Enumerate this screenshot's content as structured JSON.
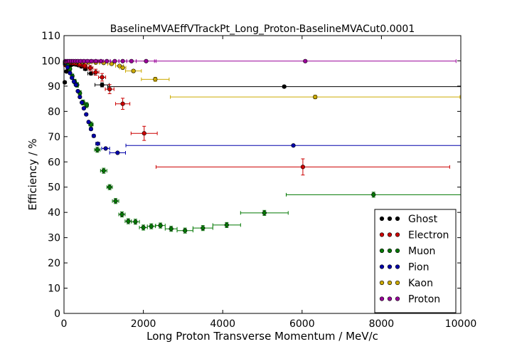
{
  "chart_data": {
    "type": "scatter",
    "title": "BaselineMVAEffVTrackPt_Long_Proton-BaselineMVACut0.0001",
    "xlabel": "Long Proton Transverse Momentum / MeV/c",
    "ylabel": "Efficiency / %",
    "xlim": [
      0,
      10000
    ],
    "ylim": [
      0,
      110
    ],
    "xticks": [
      0,
      2000,
      4000,
      6000,
      8000,
      10000
    ],
    "yticks": [
      0,
      10,
      20,
      30,
      40,
      50,
      60,
      70,
      80,
      90,
      100,
      110
    ],
    "legend_position": "lower-right",
    "series": [
      {
        "name": "Ghost",
        "color": "#000000",
        "points": [
          {
            "x": 20,
            "y": 91.5,
            "xerr": 20,
            "yerr": 0.5
          },
          {
            "x": 60,
            "y": 95.8,
            "xerr": 20,
            "yerr": 0.4
          },
          {
            "x": 100,
            "y": 97.3,
            "xerr": 20,
            "yerr": 0.3
          },
          {
            "x": 140,
            "y": 98.0,
            "xerr": 20,
            "yerr": 0.3
          },
          {
            "x": 180,
            "y": 98.4,
            "xerr": 20,
            "yerr": 0.3
          },
          {
            "x": 230,
            "y": 98.7,
            "xerr": 25,
            "yerr": 0.3
          },
          {
            "x": 290,
            "y": 98.6,
            "xerr": 30,
            "yerr": 0.3
          },
          {
            "x": 360,
            "y": 98.3,
            "xerr": 35,
            "yerr": 0.3
          },
          {
            "x": 440,
            "y": 97.8,
            "xerr": 40,
            "yerr": 0.4
          },
          {
            "x": 540,
            "y": 96.8,
            "xerr": 50,
            "yerr": 0.5
          },
          {
            "x": 680,
            "y": 95.0,
            "xerr": 80,
            "yerr": 0.6
          },
          {
            "x": 960,
            "y": 90.5,
            "xerr": 180,
            "yerr": 0.8
          },
          {
            "x": 5550,
            "y": 89.8,
            "xerr": 4450,
            "yerr": 0.5
          }
        ]
      },
      {
        "name": "Electron",
        "color": "#cc0000",
        "points": [
          {
            "x": 30,
            "y": 98.5,
            "xerr": 30,
            "yerr": 0.8
          },
          {
            "x": 90,
            "y": 99.0,
            "xerr": 30,
            "yerr": 0.6
          },
          {
            "x": 150,
            "y": 99.2,
            "xerr": 30,
            "yerr": 0.6
          },
          {
            "x": 220,
            "y": 99.1,
            "xerr": 35,
            "yerr": 0.6
          },
          {
            "x": 300,
            "y": 99.0,
            "xerr": 40,
            "yerr": 0.7
          },
          {
            "x": 400,
            "y": 98.6,
            "xerr": 50,
            "yerr": 0.8
          },
          {
            "x": 520,
            "y": 98.1,
            "xerr": 60,
            "yerr": 0.9
          },
          {
            "x": 660,
            "y": 97.2,
            "xerr": 70,
            "yerr": 1.0
          },
          {
            "x": 800,
            "y": 95.5,
            "xerr": 80,
            "yerr": 1.2
          },
          {
            "x": 960,
            "y": 93.5,
            "xerr": 90,
            "yerr": 1.5
          },
          {
            "x": 1150,
            "y": 88.8,
            "xerr": 110,
            "yerr": 1.8
          },
          {
            "x": 1480,
            "y": 83.0,
            "xerr": 180,
            "yerr": 2.2
          },
          {
            "x": 2020,
            "y": 71.3,
            "xerr": 330,
            "yerr": 2.8
          },
          {
            "x": 6020,
            "y": 58.0,
            "xerr": 3700,
            "yerr": 3.2
          }
        ]
      },
      {
        "name": "Muon",
        "color": "#007700",
        "points": [
          {
            "x": 30,
            "y": 99.0,
            "xerr": 30,
            "yerr": 0.6
          },
          {
            "x": 90,
            "y": 98.4,
            "xerr": 30,
            "yerr": 0.6
          },
          {
            "x": 150,
            "y": 96.8,
            "xerr": 30,
            "yerr": 0.7
          },
          {
            "x": 210,
            "y": 94.0,
            "xerr": 30,
            "yerr": 0.8
          },
          {
            "x": 270,
            "y": 91.8,
            "xerr": 30,
            "yerr": 0.9
          },
          {
            "x": 330,
            "y": 90.5,
            "xerr": 30,
            "yerr": 0.9
          },
          {
            "x": 400,
            "y": 87.2,
            "xerr": 35,
            "yerr": 1.0
          },
          {
            "x": 480,
            "y": 83.5,
            "xerr": 40,
            "yerr": 1.0
          },
          {
            "x": 570,
            "y": 82.5,
            "xerr": 45,
            "yerr": 1.0
          },
          {
            "x": 680,
            "y": 74.8,
            "xerr": 55,
            "yerr": 1.0
          },
          {
            "x": 840,
            "y": 64.8,
            "xerr": 70,
            "yerr": 1.0
          },
          {
            "x": 1000,
            "y": 56.5,
            "xerr": 80,
            "yerr": 1.0
          },
          {
            "x": 1150,
            "y": 50.0,
            "xerr": 70,
            "yerr": 1.0
          },
          {
            "x": 1300,
            "y": 44.5,
            "xerr": 80,
            "yerr": 1.0
          },
          {
            "x": 1460,
            "y": 39.2,
            "xerr": 80,
            "yerr": 1.0
          },
          {
            "x": 1620,
            "y": 36.5,
            "xerr": 80,
            "yerr": 1.0
          },
          {
            "x": 1800,
            "y": 36.3,
            "xerr": 100,
            "yerr": 1.0
          },
          {
            "x": 2000,
            "y": 34.0,
            "xerr": 100,
            "yerr": 1.0
          },
          {
            "x": 2200,
            "y": 34.5,
            "xerr": 100,
            "yerr": 1.0
          },
          {
            "x": 2430,
            "y": 34.8,
            "xerr": 120,
            "yerr": 1.0
          },
          {
            "x": 2700,
            "y": 33.5,
            "xerr": 150,
            "yerr": 1.0
          },
          {
            "x": 3050,
            "y": 32.8,
            "xerr": 200,
            "yerr": 1.0
          },
          {
            "x": 3500,
            "y": 33.8,
            "xerr": 250,
            "yerr": 1.0
          },
          {
            "x": 4100,
            "y": 35.0,
            "xerr": 350,
            "yerr": 1.0
          },
          {
            "x": 5050,
            "y": 39.8,
            "xerr": 600,
            "yerr": 1.0
          },
          {
            "x": 7800,
            "y": 47.0,
            "xerr": 2200,
            "yerr": 1.0
          }
        ]
      },
      {
        "name": "Pion",
        "color": "#0000aa",
        "points": [
          {
            "x": 30,
            "y": 99.2,
            "xerr": 30,
            "yerr": 0.3
          },
          {
            "x": 90,
            "y": 97.5,
            "xerr": 30,
            "yerr": 0.3
          },
          {
            "x": 150,
            "y": 95.2,
            "xerr": 30,
            "yerr": 0.3
          },
          {
            "x": 200,
            "y": 93.3,
            "xerr": 20,
            "yerr": 0.3
          },
          {
            "x": 250,
            "y": 91.8,
            "xerr": 20,
            "yerr": 0.3
          },
          {
            "x": 300,
            "y": 90.5,
            "xerr": 20,
            "yerr": 0.3
          },
          {
            "x": 350,
            "y": 88.0,
            "xerr": 20,
            "yerr": 0.3
          },
          {
            "x": 400,
            "y": 85.7,
            "xerr": 20,
            "yerr": 0.3
          },
          {
            "x": 450,
            "y": 83.5,
            "xerr": 20,
            "yerr": 0.3
          },
          {
            "x": 500,
            "y": 81.2,
            "xerr": 20,
            "yerr": 0.3
          },
          {
            "x": 560,
            "y": 78.8,
            "xerr": 25,
            "yerr": 0.3
          },
          {
            "x": 620,
            "y": 75.8,
            "xerr": 25,
            "yerr": 0.3
          },
          {
            "x": 680,
            "y": 73.0,
            "xerr": 30,
            "yerr": 0.3
          },
          {
            "x": 750,
            "y": 70.3,
            "xerr": 35,
            "yerr": 0.3
          },
          {
            "x": 850,
            "y": 67.2,
            "xerr": 50,
            "yerr": 0.3
          },
          {
            "x": 1050,
            "y": 65.3,
            "xerr": 100,
            "yerr": 0.3
          },
          {
            "x": 1350,
            "y": 63.6,
            "xerr": 200,
            "yerr": 0.3
          },
          {
            "x": 5780,
            "y": 66.5,
            "xerr": 4220,
            "yerr": 0.3
          }
        ]
      },
      {
        "name": "Kaon",
        "color": "#ccaa00",
        "points": [
          {
            "x": 30,
            "y": 99.6,
            "xerr": 30,
            "yerr": 0.2
          },
          {
            "x": 100,
            "y": 99.7,
            "xerr": 40,
            "yerr": 0.2
          },
          {
            "x": 200,
            "y": 99.7,
            "xerr": 50,
            "yerr": 0.2
          },
          {
            "x": 320,
            "y": 99.6,
            "xerr": 60,
            "yerr": 0.2
          },
          {
            "x": 460,
            "y": 99.5,
            "xerr": 70,
            "yerr": 0.2
          },
          {
            "x": 620,
            "y": 99.4,
            "xerr": 80,
            "yerr": 0.2
          },
          {
            "x": 800,
            "y": 99.3,
            "xerr": 90,
            "yerr": 0.2
          },
          {
            "x": 1000,
            "y": 99.2,
            "xerr": 100,
            "yerr": 0.2
          },
          {
            "x": 1200,
            "y": 98.8,
            "xerr": 100,
            "yerr": 0.3
          },
          {
            "x": 1400,
            "y": 98.0,
            "xerr": 100,
            "yerr": 0.4
          },
          {
            "x": 1480,
            "y": 97.3,
            "xerr": 80,
            "yerr": 0.5
          },
          {
            "x": 1750,
            "y": 96.0,
            "xerr": 200,
            "yerr": 0.6
          },
          {
            "x": 2300,
            "y": 92.7,
            "xerr": 350,
            "yerr": 0.8
          },
          {
            "x": 6330,
            "y": 85.7,
            "xerr": 3650,
            "yerr": 0.7
          }
        ]
      },
      {
        "name": "Proton",
        "color": "#990099",
        "points": [
          {
            "x": 30,
            "y": 99.9,
            "xerr": 30,
            "yerr": 0.1
          },
          {
            "x": 80,
            "y": 99.9,
            "xerr": 20,
            "yerr": 0.1
          },
          {
            "x": 130,
            "y": 99.9,
            "xerr": 25,
            "yerr": 0.1
          },
          {
            "x": 180,
            "y": 99.9,
            "xerr": 25,
            "yerr": 0.1
          },
          {
            "x": 230,
            "y": 99.9,
            "xerr": 25,
            "yerr": 0.1
          },
          {
            "x": 290,
            "y": 99.9,
            "xerr": 30,
            "yerr": 0.1
          },
          {
            "x": 350,
            "y": 99.9,
            "xerr": 30,
            "yerr": 0.1
          },
          {
            "x": 420,
            "y": 99.9,
            "xerr": 35,
            "yerr": 0.1
          },
          {
            "x": 500,
            "y": 99.9,
            "xerr": 40,
            "yerr": 0.1
          },
          {
            "x": 590,
            "y": 99.9,
            "xerr": 45,
            "yerr": 0.1
          },
          {
            "x": 690,
            "y": 99.9,
            "xerr": 50,
            "yerr": 0.1
          },
          {
            "x": 800,
            "y": 99.9,
            "xerr": 55,
            "yerr": 0.1
          },
          {
            "x": 930,
            "y": 99.9,
            "xerr": 60,
            "yerr": 0.1
          },
          {
            "x": 1080,
            "y": 99.9,
            "xerr": 80,
            "yerr": 0.1
          },
          {
            "x": 1280,
            "y": 99.9,
            "xerr": 110,
            "yerr": 0.1
          },
          {
            "x": 1480,
            "y": 99.9,
            "xerr": 100,
            "yerr": 0.1
          },
          {
            "x": 1700,
            "y": 99.9,
            "xerr": 120,
            "yerr": 0.1
          },
          {
            "x": 2070,
            "y": 99.9,
            "xerr": 250,
            "yerr": 0.1
          },
          {
            "x": 6080,
            "y": 99.9,
            "xerr": 3800,
            "yerr": 0.1
          }
        ]
      }
    ]
  }
}
